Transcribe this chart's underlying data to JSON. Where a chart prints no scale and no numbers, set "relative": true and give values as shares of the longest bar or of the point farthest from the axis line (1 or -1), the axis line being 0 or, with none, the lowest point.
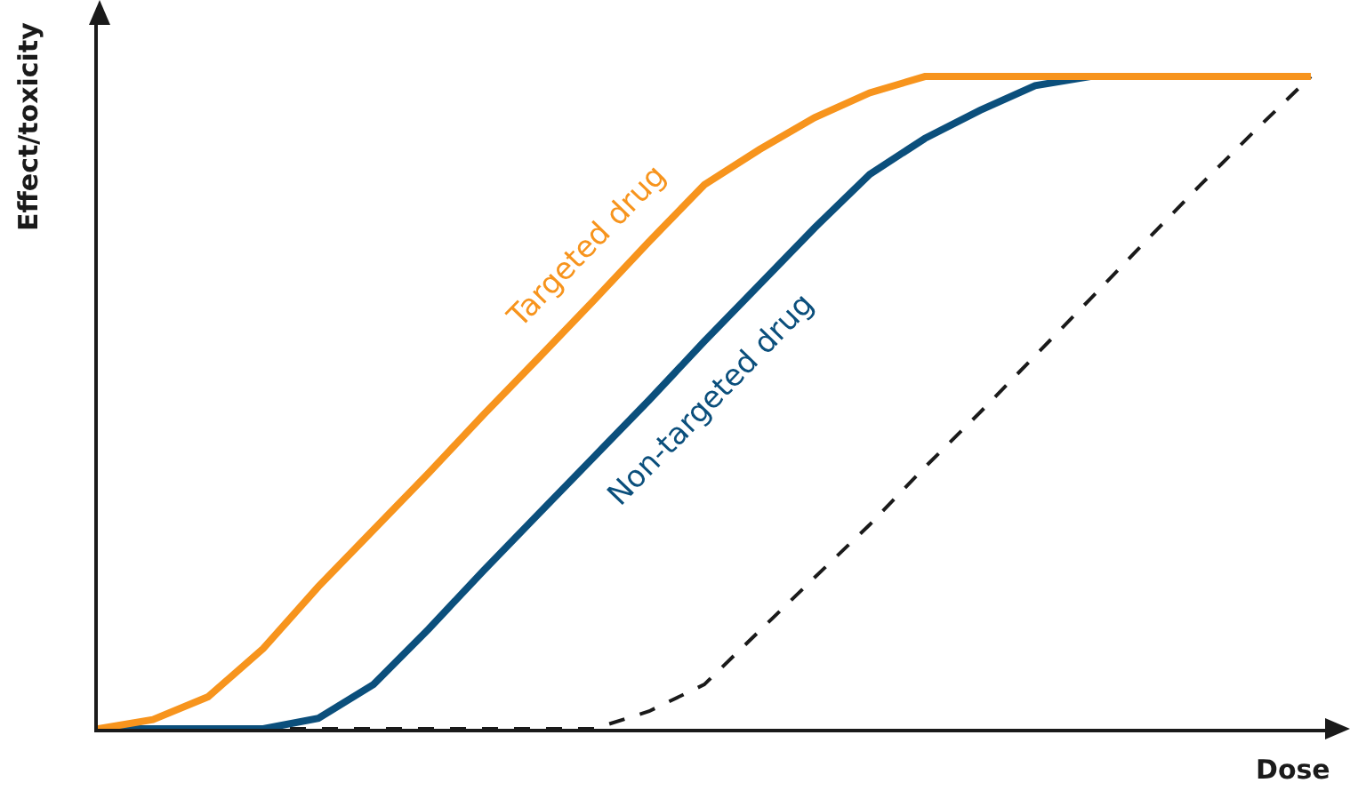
{
  "chart_data": {
    "type": "line",
    "relative": true,
    "xlabel": "Dose",
    "ylabel": "Effect/toxicity",
    "legend": false,
    "marker": "none",
    "categories": [
      null,
      null,
      null,
      null,
      null,
      null,
      null,
      null,
      null,
      null,
      null,
      null,
      null,
      null,
      null,
      null,
      null,
      null,
      null,
      null,
      null,
      null,
      null
    ],
    "series": [
      {
        "name": "Targeted drug",
        "color": "#f7941d",
        "line_style": "solid",
        "values": [
          0,
          0.014,
          0.049,
          0.123,
          0.218,
          0.305,
          0.392,
          0.482,
          0.569,
          0.657,
          0.747,
          0.834,
          0.888,
          0.937,
          0.975,
          1,
          1,
          1,
          1,
          1,
          1,
          1,
          1
        ]
      },
      {
        "name": "Non-targeted drug",
        "color": "#0b4f7c",
        "line_style": "solid",
        "values": [
          0,
          0,
          0,
          0,
          0.016,
          0.068,
          0.153,
          0.243,
          0.33,
          0.417,
          0.504,
          0.594,
          0.681,
          0.768,
          0.85,
          0.905,
          0.948,
          0.986,
          1,
          null,
          null,
          null,
          null
        ]
      },
      {
        "color": "#1a1a1a",
        "line_style": "dashed",
        "values": [
          0,
          0,
          0,
          0,
          0,
          0,
          0,
          0,
          0,
          0,
          0.027,
          0.068,
          0.15,
          0.232,
          0.313,
          0.401,
          0.485,
          0.572,
          0.659,
          0.747,
          0.834,
          0.918,
          1
        ]
      }
    ]
  }
}
